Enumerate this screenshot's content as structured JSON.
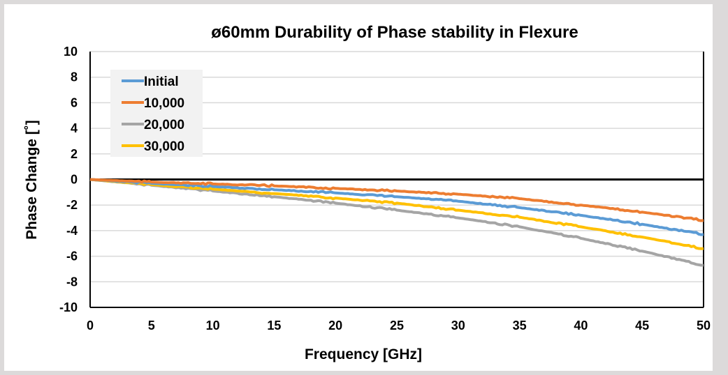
{
  "chart_data": {
    "type": "line",
    "title": "ø60mm Durability of Phase stability in Flexure",
    "xlabel": "Frequency [GHz]",
    "ylabel": "Phase Change [˚]",
    "xlim": [
      0,
      50
    ],
    "ylim": [
      -10,
      10
    ],
    "xticks": [
      0,
      5,
      10,
      15,
      20,
      25,
      30,
      35,
      40,
      45,
      50
    ],
    "yticks": [
      10,
      8,
      6,
      4,
      2,
      0,
      -2,
      -4,
      -6,
      -8,
      -10
    ],
    "grid": true,
    "legend": "top-left",
    "x": [
      0,
      5,
      10,
      15,
      20,
      25,
      30,
      35,
      40,
      45,
      50
    ],
    "series": [
      {
        "name": "Initial",
        "color": "#5b9bd5",
        "values": [
          0,
          -0.3,
          -0.55,
          -0.8,
          -1.05,
          -1.35,
          -1.7,
          -2.2,
          -2.8,
          -3.5,
          -4.3
        ]
      },
      {
        "name": "10,000",
        "color": "#ed7d31",
        "values": [
          0,
          -0.2,
          -0.35,
          -0.5,
          -0.7,
          -0.9,
          -1.15,
          -1.5,
          -2.0,
          -2.55,
          -3.2
        ]
      },
      {
        "name": "20,000",
        "color": "#a5a5a5",
        "values": [
          0,
          -0.45,
          -0.9,
          -1.35,
          -1.85,
          -2.4,
          -3.0,
          -3.7,
          -4.6,
          -5.6,
          -6.7
        ]
      },
      {
        "name": "30,000",
        "color": "#ffc000",
        "values": [
          0,
          -0.4,
          -0.75,
          -1.1,
          -1.45,
          -1.85,
          -2.4,
          -2.95,
          -3.7,
          -4.5,
          -5.4
        ]
      }
    ]
  }
}
